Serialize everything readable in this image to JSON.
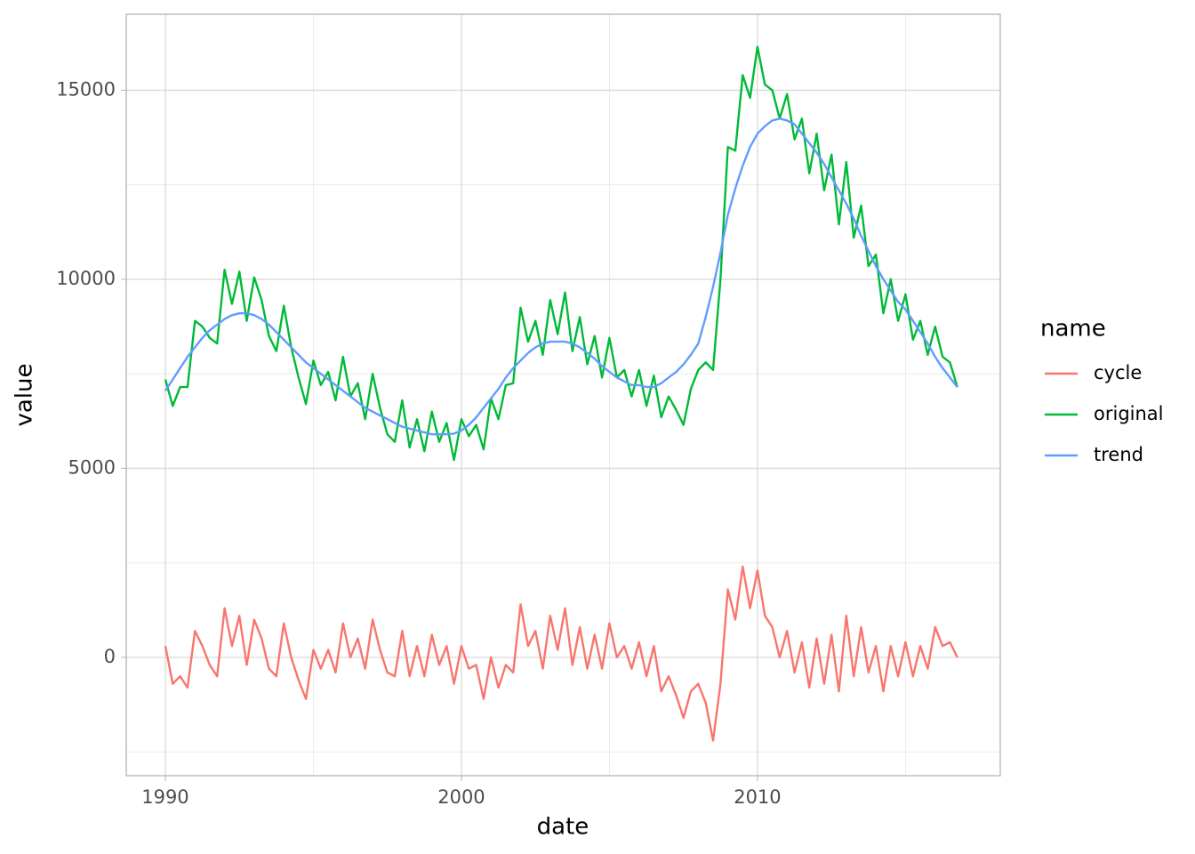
{
  "chart_data": {
    "type": "line",
    "xlabel": "date",
    "ylabel": "value",
    "legend_title": "name",
    "legend_position": "right",
    "grid": true,
    "x": [
      1990,
      1990.25,
      1990.5,
      1990.75,
      1991,
      1991.25,
      1991.5,
      1991.75,
      1992,
      1992.25,
      1992.5,
      1992.75,
      1993,
      1993.25,
      1993.5,
      1993.75,
      1994,
      1994.25,
      1994.5,
      1994.75,
      1995,
      1995.25,
      1995.5,
      1995.75,
      1996,
      1996.25,
      1996.5,
      1996.75,
      1997,
      1997.25,
      1997.5,
      1997.75,
      1998,
      1998.25,
      1998.5,
      1998.75,
      1999,
      1999.25,
      1999.5,
      1999.75,
      2000,
      2000.25,
      2000.5,
      2000.75,
      2001,
      2001.25,
      2001.5,
      2001.75,
      2002,
      2002.25,
      2002.5,
      2002.75,
      2003,
      2003.25,
      2003.5,
      2003.75,
      2004,
      2004.25,
      2004.5,
      2004.75,
      2005,
      2005.25,
      2005.5,
      2005.75,
      2006,
      2006.25,
      2006.5,
      2006.75,
      2007,
      2007.25,
      2007.5,
      2007.75,
      2008,
      2008.25,
      2008.5,
      2008.75,
      2009,
      2009.25,
      2009.5,
      2009.75,
      2010,
      2010.25,
      2010.5,
      2010.75,
      2011,
      2011.25,
      2011.5,
      2011.75,
      2012,
      2012.25,
      2012.5,
      2012.75,
      2013,
      2013.25,
      2013.5,
      2013.75,
      2014,
      2014.25,
      2014.5,
      2014.75,
      2015,
      2015.25,
      2015.5,
      2015.75,
      2016,
      2016.25,
      2016.5,
      2016.75
    ],
    "series": [
      {
        "name": "cycle",
        "color": "#F8766D",
        "values": [
          300,
          -700,
          -500,
          -800,
          700,
          300,
          -200,
          -500,
          1300,
          300,
          1100,
          -200,
          1000,
          500,
          -300,
          -500,
          900,
          0,
          -600,
          -1100,
          200,
          -300,
          200,
          -400,
          900,
          0,
          500,
          -300,
          1000,
          200,
          -400,
          -500,
          700,
          -500,
          300,
          -500,
          600,
          -200,
          300,
          -700,
          300,
          -300,
          -200,
          -1100,
          0,
          -800,
          -200,
          -400,
          1400,
          300,
          700,
          -300,
          1100,
          200,
          1300,
          -200,
          800,
          -300,
          600,
          -300,
          900,
          0,
          300,
          -300,
          400,
          -500,
          300,
          -900,
          -500,
          -1000,
          -1600,
          -900,
          -700,
          -1200,
          -2200,
          -700,
          1800,
          1000,
          2400,
          1300,
          2300,
          1100,
          800,
          0,
          700,
          -400,
          400,
          -800,
          500,
          -700,
          600,
          -900,
          1100,
          -500,
          800,
          -400,
          300,
          -900,
          300,
          -500,
          400,
          -500,
          300,
          -300,
          800,
          300,
          400,
          0
        ]
      },
      {
        "name": "original",
        "color": "#00BA38",
        "values": [
          7350,
          6650,
          7150,
          7150,
          8900,
          8750,
          8450,
          8300,
          10250,
          9350,
          10200,
          8900,
          10050,
          9450,
          8500,
          8100,
          9300,
          8200,
          7400,
          6700,
          7850,
          7200,
          7550,
          6800,
          7950,
          6900,
          7250,
          6300,
          7500,
          6600,
          5900,
          5700,
          6800,
          5550,
          6300,
          5450,
          6500,
          5700,
          6200,
          5220,
          6300,
          5850,
          6150,
          5500,
          6850,
          6300,
          7200,
          7250,
          9250,
          8350,
          8900,
          8000,
          9450,
          8550,
          9650,
          8100,
          9000,
          7750,
          8500,
          7400,
          8450,
          7400,
          7600,
          6900,
          7600,
          6650,
          7450,
          6350,
          6900,
          6550,
          6150,
          7100,
          7600,
          7800,
          7600,
          10000,
          13500,
          13400,
          15400,
          14800,
          16150,
          15150,
          15000,
          14250,
          14900,
          13700,
          14250,
          12800,
          13850,
          12350,
          13300,
          11450,
          13100,
          11100,
          11950,
          10350,
          10650,
          9100,
          10000,
          8900,
          9600,
          8400,
          8900,
          8000,
          8750,
          7950,
          7800,
          7150
        ]
      },
      {
        "name": "trend",
        "color": "#619CFF",
        "values": [
          7050,
          7350,
          7650,
          7950,
          8200,
          8450,
          8650,
          8800,
          8950,
          9050,
          9100,
          9100,
          9050,
          8950,
          8800,
          8600,
          8400,
          8200,
          8000,
          7800,
          7650,
          7500,
          7350,
          7200,
          7050,
          6900,
          6750,
          6600,
          6500,
          6400,
          6300,
          6200,
          6100,
          6050,
          6000,
          5950,
          5900,
          5900,
          5900,
          5920,
          6000,
          6150,
          6350,
          6600,
          6850,
          7100,
          7400,
          7650,
          7850,
          8050,
          8200,
          8300,
          8350,
          8350,
          8350,
          8300,
          8200,
          8050,
          7900,
          7700,
          7550,
          7400,
          7300,
          7200,
          7200,
          7150,
          7150,
          7250,
          7400,
          7550,
          7750,
          8000,
          8300,
          9000,
          9800,
          10700,
          11700,
          12400,
          13000,
          13500,
          13850,
          14050,
          14200,
          14250,
          14200,
          14100,
          13850,
          13600,
          13350,
          13050,
          12700,
          12350,
          12000,
          11600,
          11150,
          10750,
          10350,
          10000,
          9700,
          9400,
          9200,
          8900,
          8600,
          8300,
          7950,
          7650,
          7400,
          7150
        ]
      }
    ],
    "xlim": [
      1988.68,
      2018.2
    ],
    "xticks": [
      1990,
      2000,
      2010
    ],
    "xminorticks": [
      1995,
      2005,
      2015
    ],
    "ylim": [
      -3130,
      17010
    ],
    "yticks": [
      0,
      5000,
      10000,
      15000
    ],
    "yminorticks": [
      -2500,
      2500,
      7500,
      12500
    ]
  }
}
